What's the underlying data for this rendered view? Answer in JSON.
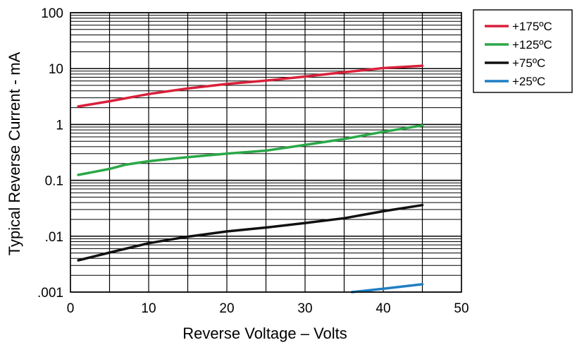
{
  "chart_data": {
    "type": "line",
    "xlabel": "Reverse Voltage – Volts",
    "ylabel": "Typical Reverse Current - mA",
    "xlim": [
      0,
      50
    ],
    "ylim": [
      0.001,
      100
    ],
    "yscale": "log",
    "grid": true,
    "legend_position": "top-right",
    "x_ticks": [
      {
        "value": 0,
        "label": "0"
      },
      {
        "value": 10,
        "label": "10"
      },
      {
        "value": 20,
        "label": "20"
      },
      {
        "value": 30,
        "label": "30"
      },
      {
        "value": 40,
        "label": "40"
      },
      {
        "value": 50,
        "label": "50"
      }
    ],
    "y_ticks": [
      {
        "value": 100,
        "label": "100"
      },
      {
        "value": 10,
        "label": "10"
      },
      {
        "value": 1,
        "label": "1"
      },
      {
        "value": 0.1,
        "label": "0.1"
      },
      {
        "value": 0.01,
        "label": ".01"
      },
      {
        "value": 0.001,
        "label": ".001"
      }
    ],
    "series": [
      {
        "name": "+175ºC",
        "color": "#d9203a",
        "x": [
          1,
          5,
          10,
          15,
          20,
          25,
          30,
          35,
          40,
          45
        ],
        "y": [
          2.1,
          2.6,
          3.5,
          4.4,
          5.3,
          6.1,
          7.2,
          8.6,
          10.2,
          11.2
        ]
      },
      {
        "name": "+125ºC",
        "color": "#2aa847",
        "x": [
          1,
          5,
          7,
          10,
          15,
          20,
          25,
          30,
          35,
          40,
          45
        ],
        "y": [
          0.125,
          0.16,
          0.19,
          0.22,
          0.26,
          0.3,
          0.34,
          0.43,
          0.55,
          0.74,
          0.96
        ]
      },
      {
        "name": "+75ºC",
        "color": "#111111",
        "x": [
          1,
          5,
          10,
          15,
          20,
          25,
          30,
          35,
          40,
          45
        ],
        "y": [
          0.0037,
          0.0051,
          0.0075,
          0.0098,
          0.0122,
          0.0143,
          0.0172,
          0.021,
          0.028,
          0.036
        ]
      },
      {
        "name": "+25ºC",
        "color": "#1f7fc4",
        "x": [
          36,
          40,
          45
        ],
        "y": [
          0.001,
          0.00115,
          0.00138
        ]
      }
    ]
  }
}
